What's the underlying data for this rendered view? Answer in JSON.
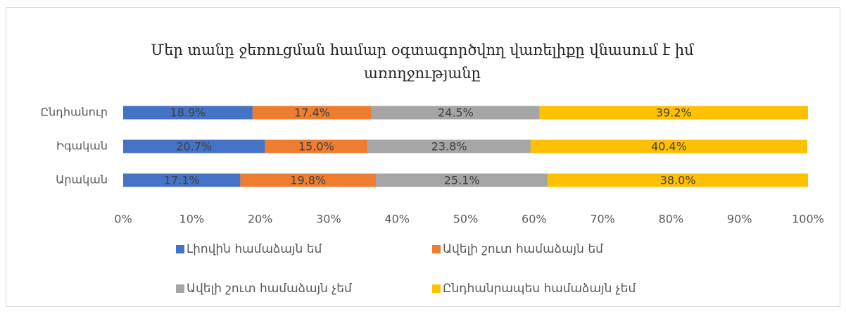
{
  "chart_data": {
    "type": "stacked_barh",
    "title": "Մեր տանը ջեռուցման համար օգտագործվող վառելիքը վնասում է իմ առողջությանը",
    "categories": [
      "Ընդհանուր",
      "Իգական",
      "Արական"
    ],
    "series": [
      {
        "name": "Լիովին համաձայն եմ",
        "color": "#4472c4",
        "values": [
          18.9,
          20.7,
          17.1
        ],
        "value_labels": [
          "18.9%",
          "20.7%",
          "17.1%"
        ]
      },
      {
        "name": "Ավելի շուտ համաձայն եմ",
        "color": "#ed7d31",
        "values": [
          17.4,
          15.0,
          19.8
        ],
        "value_labels": [
          "17.4%",
          "15.0%",
          "19.8%"
        ]
      },
      {
        "name": "Ավելի շուտ համաձայն չեմ",
        "color": "#a5a5a5",
        "values": [
          24.5,
          23.8,
          25.1
        ],
        "value_labels": [
          "24.5%",
          "23.8%",
          "25.1%"
        ]
      },
      {
        "name": "Ընդհանրապես համաձայն չեմ",
        "color": "#ffc000",
        "values": [
          39.2,
          40.4,
          38.0
        ],
        "value_labels": [
          "39.2%",
          "40.4%",
          "38.0%"
        ]
      }
    ],
    "xlim": [
      0,
      100
    ],
    "xticks": [
      {
        "value": 0,
        "label": "0%"
      },
      {
        "value": 10,
        "label": "10%"
      },
      {
        "value": 20,
        "label": "20%"
      },
      {
        "value": 30,
        "label": "30%"
      },
      {
        "value": 40,
        "label": "40%"
      },
      {
        "value": 50,
        "label": "50%"
      },
      {
        "value": 60,
        "label": "60%"
      },
      {
        "value": 70,
        "label": "70%"
      },
      {
        "value": 80,
        "label": "80%"
      },
      {
        "value": 90,
        "label": "90%"
      },
      {
        "value": 100,
        "label": "100%"
      }
    ],
    "grid": false,
    "legend": "bottom"
  }
}
